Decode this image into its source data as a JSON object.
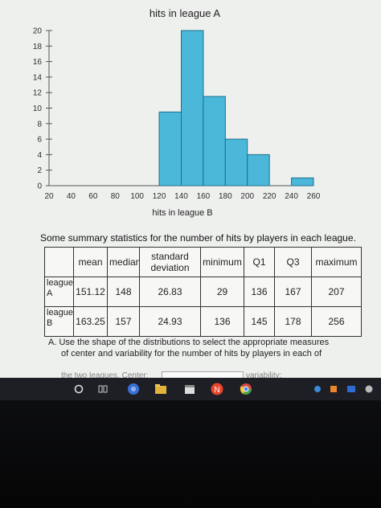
{
  "chart_data": {
    "type": "bar",
    "title": "hits in league A",
    "xlabel": "hits in league B",
    "ylabel": "",
    "x_ticks": [
      20,
      40,
      60,
      80,
      100,
      120,
      140,
      160,
      180,
      200,
      220,
      240,
      260
    ],
    "y_ticks": [
      0,
      2,
      4,
      6,
      8,
      10,
      12,
      14,
      16,
      18,
      20
    ],
    "xlim": [
      20,
      260
    ],
    "ylim": [
      0,
      20
    ],
    "bin_width": 20,
    "bins": [
      {
        "start": 120,
        "end": 140,
        "count": 9.5
      },
      {
        "start": 140,
        "end": 160,
        "count": 20
      },
      {
        "start": 160,
        "end": 180,
        "count": 11.5
      },
      {
        "start": 180,
        "end": 200,
        "count": 6
      },
      {
        "start": 200,
        "end": 220,
        "count": 4
      },
      {
        "start": 220,
        "end": 240,
        "count": 0
      },
      {
        "start": 240,
        "end": 260,
        "count": 1
      }
    ],
    "colors": {
      "bar_fill": "#4bb8da",
      "bar_stroke": "#1a6f8c"
    }
  },
  "summary": {
    "text": "Some summary statistics for the number of hits by players in each league.",
    "headers": [
      "",
      "mean",
      "median",
      "standard deviation",
      "minimum",
      "Q1",
      "Q3",
      "maximum"
    ],
    "rows": [
      {
        "label": "league A",
        "values": [
          "151.12",
          "148",
          "26.83",
          "29",
          "136",
          "167",
          "207"
        ]
      },
      {
        "label": "league B",
        "values": [
          "163.25",
          "157",
          "24.93",
          "136",
          "145",
          "178",
          "256"
        ]
      }
    ]
  },
  "question": {
    "line1": "A. Use the shape of the distributions to select the appropriate measures",
    "line2": "of center and variability for the number of hits by players in each of",
    "cut_left": "the two leagues. Center:",
    "cut_right": "variability:"
  },
  "taskbar": {
    "icons": [
      "circle-icon",
      "task-view-icon",
      "chrome-icon",
      "file-explorer-icon",
      "calendar-icon",
      "app-n-icon",
      "chrome-icon"
    ],
    "tray_icons": [
      "chrome-icon",
      "orange-app-icon",
      "mail-icon",
      "user-avatar-icon"
    ]
  }
}
